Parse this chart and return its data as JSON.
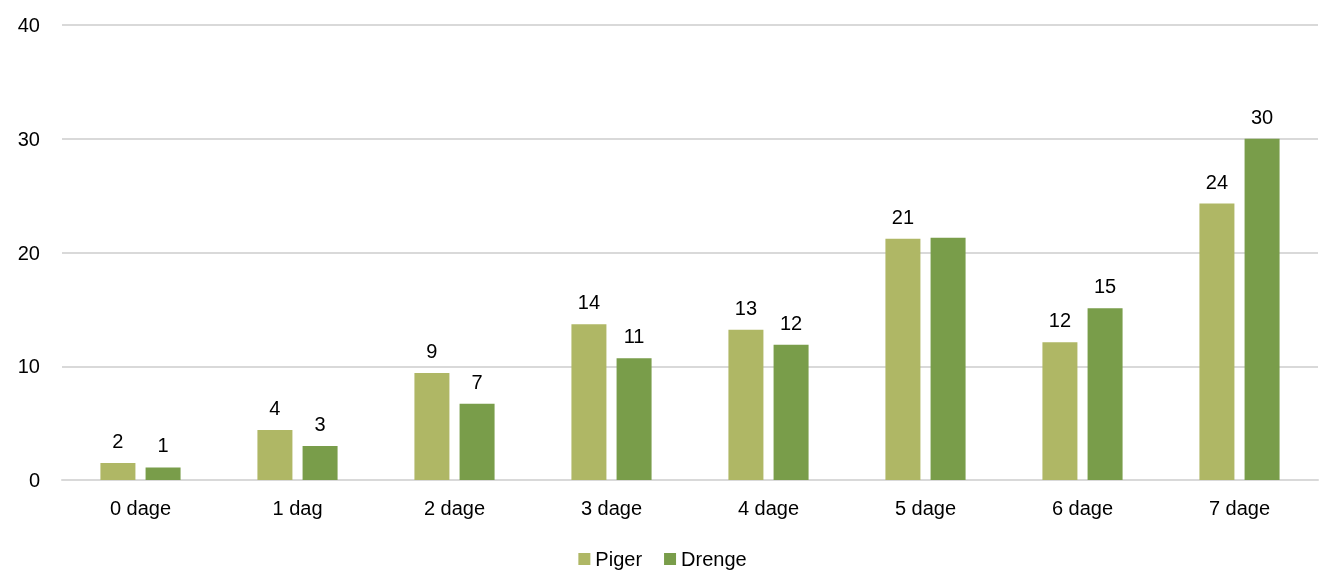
{
  "chart_data": {
    "type": "bar",
    "categories": [
      "0 dage",
      "1 dag",
      "2 dage",
      "3 dage",
      "4 dage",
      "5 dage",
      "6 dage",
      "7 dage"
    ],
    "series": [
      {
        "name": "Piger",
        "color": "#afb765",
        "values": [
          1.5,
          4.4,
          9.4,
          13.7,
          13.2,
          21.2,
          12.1,
          24.3
        ],
        "value_labels": [
          "2",
          "4",
          "9",
          "14",
          "13",
          "21",
          "12",
          "24"
        ]
      },
      {
        "name": "Drenge",
        "color": "#799d4a",
        "values": [
          1.1,
          3.0,
          6.7,
          10.7,
          11.9,
          21.3,
          15.1,
          30.0
        ],
        "value_labels": [
          "1",
          "3",
          "7",
          "11",
          "12",
          null,
          "15",
          "30"
        ]
      }
    ],
    "ylim": [
      0,
      40
    ],
    "yticks": [
      0,
      10,
      20,
      30,
      40
    ],
    "grid": "y",
    "legend": "bottom"
  }
}
